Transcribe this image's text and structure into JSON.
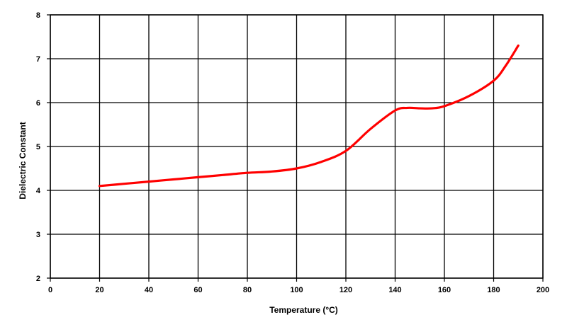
{
  "chart_data": {
    "type": "line",
    "title": "",
    "xlabel": "Temperature (°C)",
    "ylabel": "Dielectric Constant",
    "xlim": [
      0,
      200
    ],
    "ylim": [
      2,
      8
    ],
    "x_ticks": [
      "0",
      "20",
      "40",
      "60",
      "80",
      "100",
      "120",
      "140",
      "160",
      "180",
      "200"
    ],
    "y_ticks": [
      "2",
      "3",
      "4",
      "5",
      "6",
      "7",
      "8"
    ],
    "grid": true,
    "legend": "none",
    "series": [
      {
        "color": "#ff0000",
        "points": [
          [
            20,
            4.1
          ],
          [
            30,
            4.15
          ],
          [
            40,
            4.2
          ],
          [
            50,
            4.25
          ],
          [
            60,
            4.3
          ],
          [
            70,
            4.35
          ],
          [
            80,
            4.4
          ],
          [
            90,
            4.43
          ],
          [
            100,
            4.5
          ],
          [
            110,
            4.65
          ],
          [
            120,
            4.9
          ],
          [
            130,
            5.4
          ],
          [
            140,
            5.82
          ],
          [
            145,
            5.88
          ],
          [
            150,
            5.87
          ],
          [
            155,
            5.87
          ],
          [
            160,
            5.92
          ],
          [
            170,
            6.15
          ],
          [
            180,
            6.5
          ],
          [
            185,
            6.85
          ],
          [
            190,
            7.3
          ]
        ]
      }
    ]
  }
}
